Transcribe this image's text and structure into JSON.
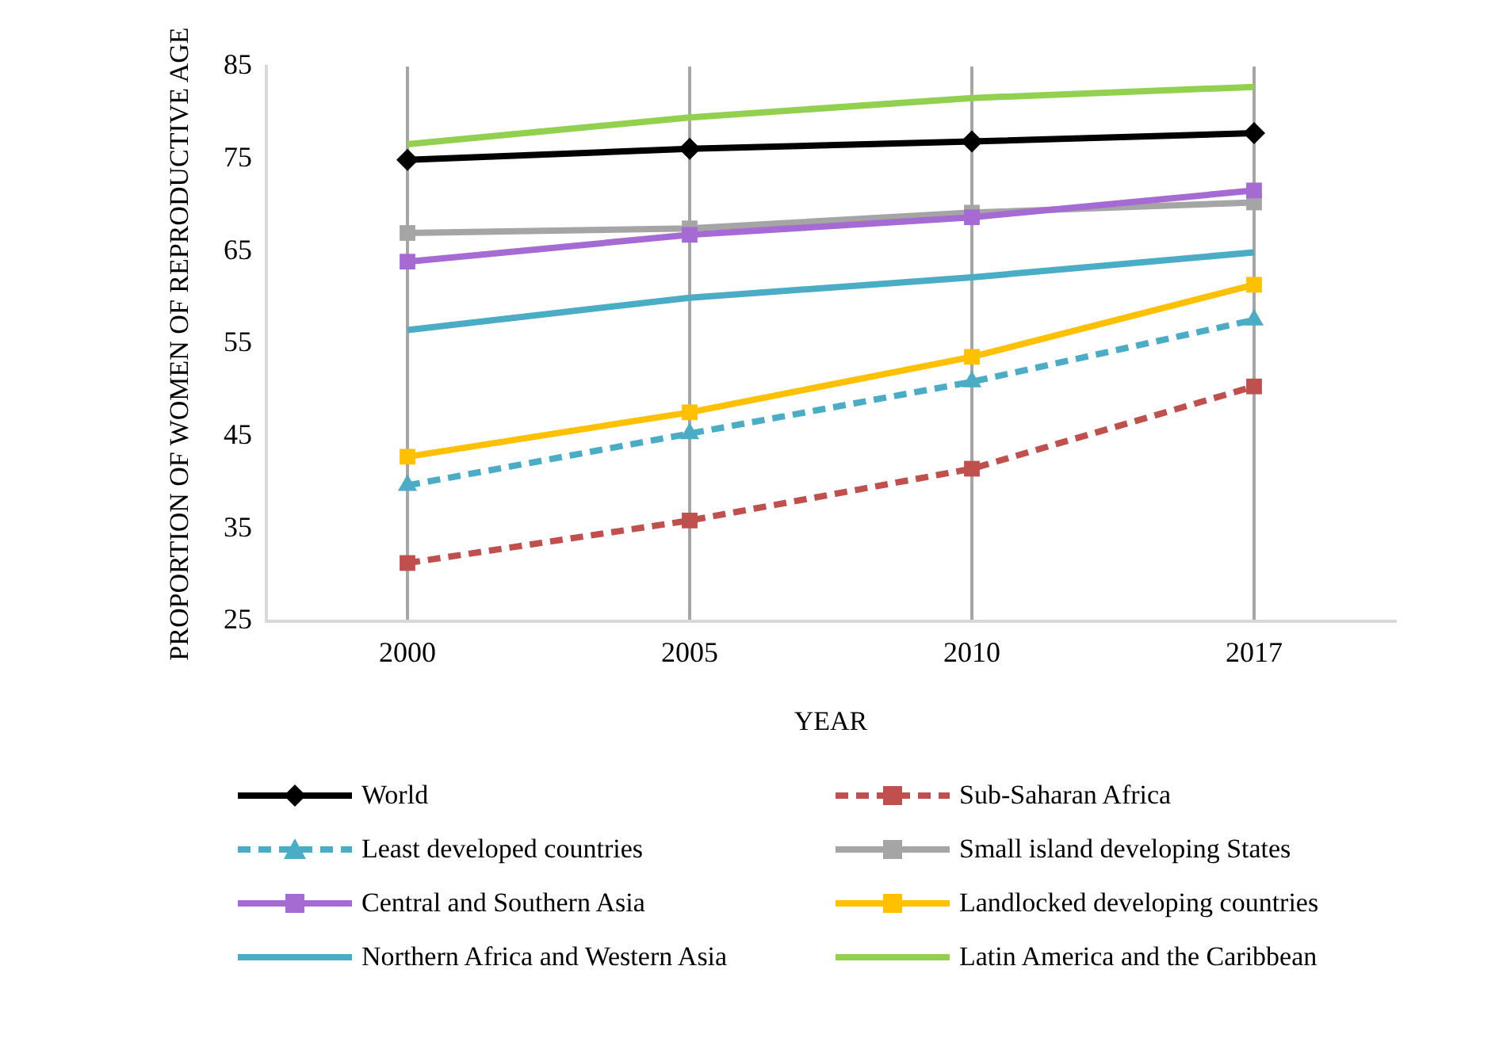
{
  "chart_data": {
    "type": "line",
    "xlabel": "YEAR",
    "ylabel": "PROPORTION OF WOMEN OF REPRODUCTIVE AGE",
    "categories": [
      "2000",
      "2005",
      "2010",
      "2017"
    ],
    "ylim": [
      25,
      85
    ],
    "yticks": [
      25,
      35,
      45,
      55,
      65,
      75,
      85
    ],
    "grid": "x",
    "legend": "bottom",
    "series": [
      {
        "name": "World",
        "color": "#000000",
        "marker": "diamond",
        "line_style": "solid",
        "values": [
          74.9,
          76.1,
          76.9,
          77.8
        ]
      },
      {
        "name": "Sub-Saharan Africa",
        "color": "#c0504d",
        "marker": "square",
        "line_style": "dashed",
        "values": [
          31.3,
          35.9,
          41.5,
          50.4
        ]
      },
      {
        "name": "Least developed countries",
        "color": "#4bacc6",
        "marker": "triangle",
        "line_style": "dashed",
        "values": [
          39.7,
          45.3,
          50.9,
          57.6
        ]
      },
      {
        "name": "Small island developing States",
        "color": "#a5a5a5",
        "marker": "square",
        "line_style": "solid",
        "values": [
          67.0,
          67.5,
          69.2,
          70.3
        ]
      },
      {
        "name": "Central and Southern Asia",
        "color": "#a66bd3",
        "marker": "square",
        "line_style": "solid",
        "values": [
          63.9,
          66.8,
          68.7,
          71.6
        ]
      },
      {
        "name": "Landlocked developing countries",
        "color": "#ffc000",
        "marker": "square",
        "line_style": "solid",
        "values": [
          42.8,
          47.6,
          53.6,
          61.4
        ]
      },
      {
        "name": "Northern Africa and Western Asia",
        "color": "#4bacc6",
        "marker": "none",
        "line_style": "solid",
        "values": [
          56.5,
          60.0,
          62.2,
          64.9
        ]
      },
      {
        "name": "Latin America and the Caribbean",
        "color": "#92d050",
        "marker": "none",
        "line_style": "solid",
        "values": [
          76.6,
          79.5,
          81.6,
          82.8
        ]
      }
    ]
  }
}
